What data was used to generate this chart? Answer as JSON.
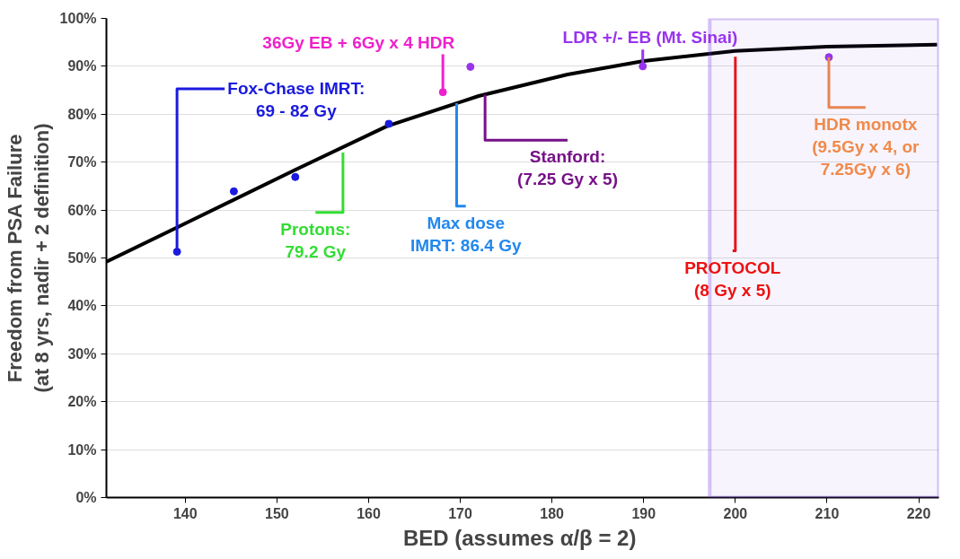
{
  "chart_data": {
    "type": "scatter",
    "xlabel": "BED  (assumes α/β = 2)",
    "ylabel": "Freedom from PSA Failure\n(at 8 yrs, nadir + 2 definition)",
    "xlim": [
      131.4,
      222.2
    ],
    "xticks": [
      140,
      150,
      160,
      170,
      180,
      190,
      200,
      210,
      220
    ],
    "ylim": [
      0,
      100
    ],
    "yticks": [
      {
        "value": 0,
        "label": "0%"
      },
      {
        "value": 10,
        "label": "10%"
      },
      {
        "value": 20,
        "label": "20%"
      },
      {
        "value": 30,
        "label": "30%"
      },
      {
        "value": 40,
        "label": "40%"
      },
      {
        "value": 50,
        "label": "50%"
      },
      {
        "value": 60,
        "label": "60%"
      },
      {
        "value": 70,
        "label": "70%"
      },
      {
        "value": 80,
        "label": "80%"
      },
      {
        "value": 90,
        "label": "90%"
      },
      {
        "value": 100,
        "label": "100%"
      }
    ],
    "grid": "y",
    "series": [
      {
        "type": "line",
        "color": "#000000",
        "x": [
          131.4,
          140,
          152,
          162,
          172,
          181.7,
          190,
          200,
          210,
          222
        ],
        "values": [
          49.2,
          57.2,
          68.4,
          77.5,
          83.8,
          88.3,
          91.1,
          93.2,
          94.1,
          94.5
        ]
      },
      {
        "marker": "circle",
        "x": [
          139.1,
          145.3,
          152.0,
          162.2,
          168.1,
          171.1,
          189.9,
          210.2
        ],
        "values": [
          51.3,
          63.9,
          66.9,
          78.0,
          84.6,
          89.9,
          90.0,
          91.9
        ],
        "colors": [
          "#1a1ae0",
          "#1a1ae0",
          "#1a1ae0",
          "#1a1ae0",
          "#ee22cc",
          "#9933ee",
          "#9933ee",
          "#9933ee"
        ]
      }
    ],
    "annotations": [
      {
        "text": "36Gy EB + 6Gy x 4 HDR",
        "x": 168.1,
        "y": 84.6
      },
      {
        "text": "LDR +/- EB (Mt. Sinai)",
        "x": 189.9,
        "y": 90.0
      },
      {
        "text": "Fox-Chase IMRT:\n69 - 82 Gy",
        "x": 139.1,
        "y": 51.3
      },
      {
        "text": "Protons:\n79.2 Gy",
        "x": 157.2,
        "y": 72
      },
      {
        "text": "Max dose\nIMRT: 86.4 Gy",
        "x": 169.6,
        "y": 82.3
      },
      {
        "text": "Stanford:\n(7.25 Gy x 5)",
        "x": 172.7,
        "y": 84.1
      },
      {
        "text": "PROTOCOL\n(8 Gy x 5)",
        "x": 200,
        "y": 92
      },
      {
        "text": "HDR monotx\n(9.5Gy x 4, or\n7.25Gy x 6)",
        "x": 210.2,
        "y": 91.9
      }
    ],
    "bands": [
      {
        "axis": "x",
        "from": 197.2,
        "to": 222.2,
        "color": "#7b3fe4"
      }
    ]
  }
}
